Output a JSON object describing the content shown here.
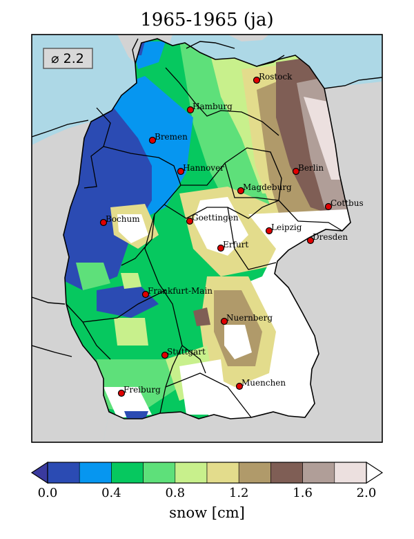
{
  "title": "1965-1965 (ja)",
  "mean_label": "⌀ 2.2",
  "colorbar": {
    "label": "snow [cm]",
    "ticks": [
      "0.0",
      "0.4",
      "0.8",
      "1.2",
      "1.6",
      "2.0"
    ],
    "tick_values": [
      0.0,
      0.4,
      0.8,
      1.2,
      1.6,
      2.0
    ],
    "range": [
      0.0,
      2.0
    ],
    "colors": [
      "#2b4bb3",
      "#0696f0",
      "#06c85f",
      "#5ee07a",
      "#c8f08c",
      "#e3dc8c",
      "#b09a6a",
      "#7f5e55",
      "#b09e98",
      "#ece0df"
    ],
    "under_color": "#3a3a9e",
    "over_color": "#ffffff"
  },
  "colors": {
    "sea": "#add8e6",
    "land_outside": "#d3d3d3",
    "city_marker": "#e00000"
  },
  "cities": [
    {
      "name": "Rostock"
    },
    {
      "name": "Hamburg"
    },
    {
      "name": "Bremen"
    },
    {
      "name": "Berlin"
    },
    {
      "name": "Hannover"
    },
    {
      "name": "Magdeburg"
    },
    {
      "name": "Cottbus"
    },
    {
      "name": "Bochum"
    },
    {
      "name": "Goettingen"
    },
    {
      "name": "Leipzig"
    },
    {
      "name": "Erfurt"
    },
    {
      "name": "Dresden"
    },
    {
      "name": "Frankfurt-Main"
    },
    {
      "name": "Nuernberg"
    },
    {
      "name": "Stuttgart"
    },
    {
      "name": "Muenchen"
    },
    {
      "name": "Freiburg"
    }
  ]
}
